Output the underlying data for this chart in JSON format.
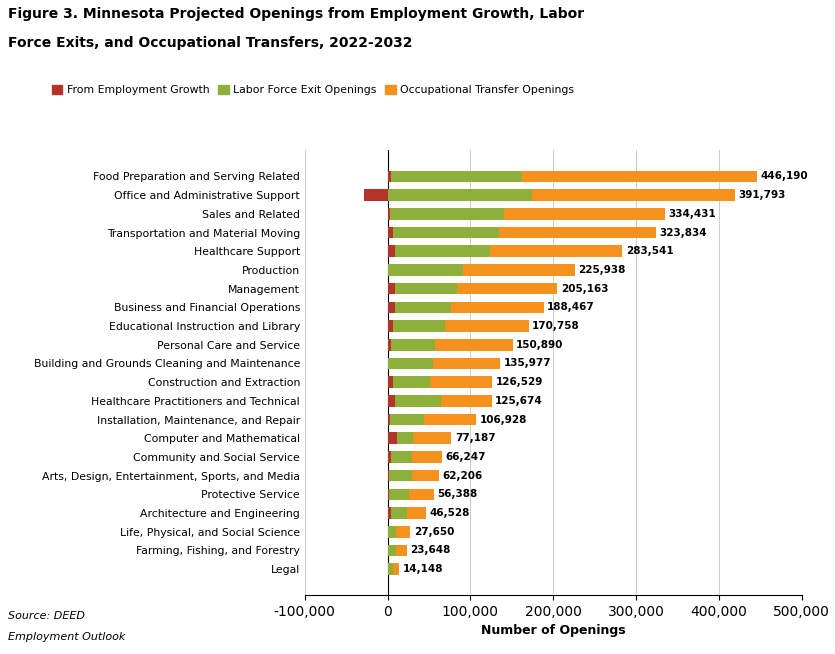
{
  "title_line1": "Figure 3. Minnesota Projected Openings from Employment Growth, Labor",
  "title_line2": "Force Exits, and Occupational Transfers, 2022-2032",
  "categories": [
    "Food Preparation and Serving Related",
    "Office and Administrative Support",
    "Sales and Related",
    "Transportation and Material Moving",
    "Healthcare Support",
    "Production",
    "Management",
    "Business and Financial Operations",
    "Educational Instruction and Library",
    "Personal Care and Service",
    "Building and Grounds Cleaning and Maintenance",
    "Construction and Extraction",
    "Healthcare Practitioners and Technical",
    "Installation, Maintenance, and Repair",
    "Computer and Mathematical",
    "Community and Social Service",
    "Arts, Design, Entertainment, Sports, and Media",
    "Protective Service",
    "Architecture and Engineering",
    "Life, Physical, and Social Science",
    "Farming, Fishing, and Forestry",
    "Legal"
  ],
  "employment_growth": [
    4000,
    -28000,
    3000,
    7000,
    9000,
    1000,
    9000,
    9000,
    6000,
    4000,
    1000,
    7000,
    9000,
    3000,
    11000,
    4000,
    2000,
    1500,
    4000,
    1000,
    500,
    500
  ],
  "labor_force_exits": [
    158000,
    175000,
    138000,
    128000,
    115000,
    90000,
    75000,
    68000,
    63000,
    53000,
    54000,
    44000,
    55000,
    41000,
    20000,
    26000,
    28000,
    24000,
    19000,
    9000,
    9500,
    6500
  ],
  "occupational_transfers": [
    284190,
    244793,
    193431,
    188834,
    159541,
    134938,
    121163,
    111467,
    101758,
    93890,
    80977,
    75529,
    61674,
    62928,
    46187,
    36247,
    32206,
    30888,
    23528,
    17650,
    13648,
    7148
  ],
  "totals": [
    446190,
    391793,
    334431,
    323834,
    283541,
    225938,
    205163,
    188467,
    170758,
    150890,
    135977,
    126529,
    125674,
    106928,
    77187,
    66247,
    62206,
    56388,
    46528,
    27650,
    23648,
    14148
  ],
  "color_employment": "#b5342a",
  "color_labor": "#8db03a",
  "color_transfer": "#f5921e",
  "xlabel": "Number of Openings",
  "source_line1": "Source: DEED",
  "source_line2": "Employment Outlook",
  "xlim_min": -100000,
  "xlim_max": 500000,
  "legend_labels": [
    "From Employment Growth",
    "Labor Force Exit Openings",
    "Occupational Transfer Openings"
  ],
  "background_color": "#ffffff"
}
